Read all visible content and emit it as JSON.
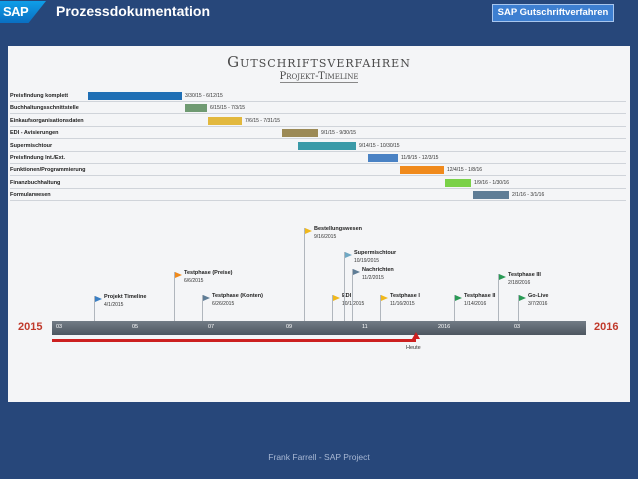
{
  "header": {
    "logo": "SAP",
    "title": "Prozessdokumentation",
    "badge": "SAP Gutschriftverfahren"
  },
  "slide": {
    "title": "Gutschriftsverfahren",
    "subtitle": "Projekt-Timeline",
    "tasks": [
      {
        "label": "Preisfindung komplett",
        "date": "3/30/15 - 6/12/15",
        "color": "#1f6fb5"
      },
      {
        "label": "Buchhaltungsschnittstelle",
        "date": "6/15/15 - 7/3/15",
        "color": "#6f9a72"
      },
      {
        "label": "Einkaufsorganisationsdaten",
        "date": "7/6/15 - 7/31/15",
        "color": "#e2b83e"
      },
      {
        "label": "EDI - Avisierungen",
        "date": "9/1/15 - 9/30/15",
        "color": "#9c8a56"
      },
      {
        "label": "Supermischtour",
        "date": "9/14/15 - 10/30/15",
        "color": "#3a9aa8"
      },
      {
        "label": "Preisfindung Int./Ext.",
        "date": "11/9/15 - 12/3/15",
        "color": "#4a82c4"
      },
      {
        "label": "Funktionen/Programmierung",
        "date": "12/4/15 - 1/8/16",
        "color": "#f08a1c"
      },
      {
        "label": "Finanzbuchhaltung",
        "date": "1/9/16 - 1/30/16",
        "color": "#7ad148"
      },
      {
        "label": "Formularwesen",
        "date": "2/1/16 - 3/1/16",
        "color": "#5f7d96"
      }
    ],
    "axis": {
      "start_year": "2015",
      "end_year": "2016",
      "ticks": [
        "03",
        "05",
        "07",
        "09",
        "11",
        "2016",
        "03"
      ]
    },
    "today_label": "Heute",
    "milestones": [
      {
        "title": "Projekt Timeline",
        "date": "4/1/2015",
        "color": "#3a7fc4"
      },
      {
        "title": "Testphase (Preise)",
        "date": "6/6/2015",
        "color": "#f08a1c"
      },
      {
        "title": "Testphase (Konten)",
        "date": "6/26/2015",
        "color": "#5f7d96"
      },
      {
        "title": "Bestellungswesen",
        "date": "9/16/2015",
        "color": "#f0b81c"
      },
      {
        "title": "EDI",
        "date": "10/1/2015",
        "color": "#f0b81c"
      },
      {
        "title": "Supermischtour",
        "date": "10/19/2015",
        "color": "#6fa8c4"
      },
      {
        "title": "Nachrichten",
        "date": "11/2/2015",
        "color": "#5f7d96"
      },
      {
        "title": "Testphase I",
        "date": "11/16/2015",
        "color": "#f0b81c"
      },
      {
        "title": "Testphase II",
        "date": "1/14/2016",
        "color": "#2a9a55"
      },
      {
        "title": "Testphase III",
        "date": "2/18/2016",
        "color": "#2a9a55"
      },
      {
        "title": "Go-Live",
        "date": "3/7/2016",
        "color": "#2a9a55"
      }
    ]
  },
  "footer": "Frank Farrell - SAP Project"
}
